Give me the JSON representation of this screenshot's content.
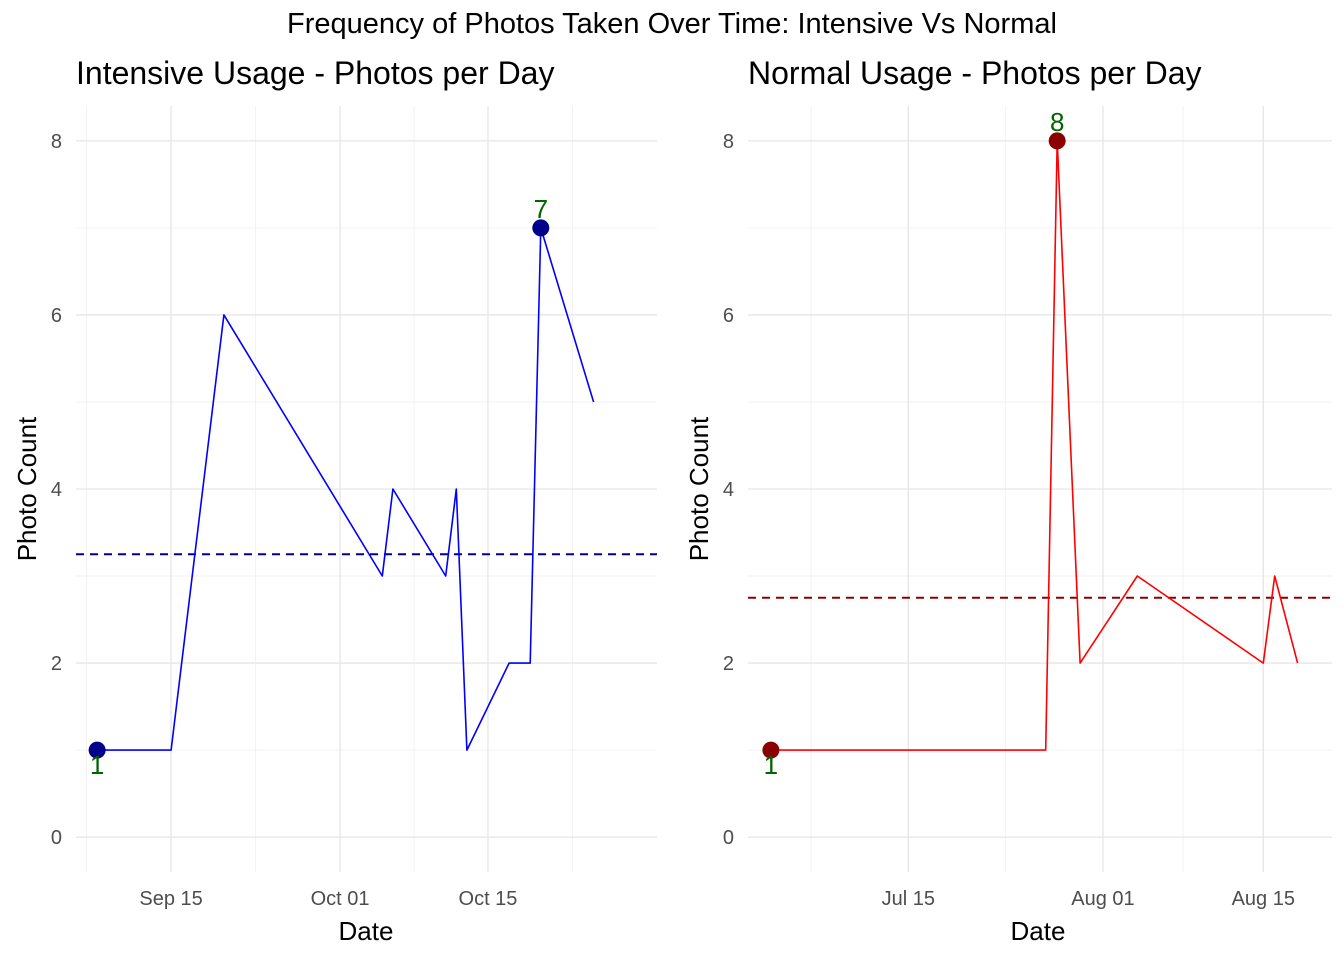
{
  "figure_title": "Frequency of Photos Taken Over Time: Intensive Vs Normal",
  "chart_data": [
    {
      "type": "line",
      "title": "Intensive Usage - Photos per Day",
      "xlabel": "Date",
      "ylabel": "Photo Count",
      "xlim": [
        "2024-09-06",
        "2024-10-31"
      ],
      "ylim": [
        0,
        8
      ],
      "x_ticks": [
        "2024-09-15",
        "2024-10-01",
        "2024-10-15"
      ],
      "x_tick_labels": [
        "Sep 15",
        "Oct 01",
        "Oct 15"
      ],
      "y_ticks": [
        0,
        2,
        4,
        6,
        8
      ],
      "y_tick_labels": [
        "0",
        "2",
        "4",
        "6",
        "8"
      ],
      "line_color": "#0000ff",
      "marker_color": "#00008b",
      "mean_line_color": "#00008b",
      "label_color": "#006400",
      "mean": 3.25,
      "x": [
        "2024-09-08",
        "2024-09-15",
        "2024-09-20",
        "2024-10-05",
        "2024-10-06",
        "2024-10-11",
        "2024-10-12",
        "2024-10-13",
        "2024-10-17",
        "2024-10-19",
        "2024-10-20",
        "2024-10-25"
      ],
      "values": [
        1,
        1,
        6,
        3,
        4,
        3,
        4,
        1,
        2,
        2,
        7,
        5
      ],
      "highlights": [
        {
          "x": "2024-09-08",
          "value": 1,
          "label": "1",
          "position": "below"
        },
        {
          "x": "2024-10-20",
          "value": 7,
          "label": "7",
          "position": "above"
        }
      ]
    },
    {
      "type": "line",
      "title": "Normal Usage - Photos per Day",
      "xlabel": "Date",
      "ylabel": "Photo Count",
      "xlim": [
        "2024-07-01",
        "2024-08-21"
      ],
      "ylim": [
        0,
        8
      ],
      "x_ticks": [
        "2024-07-15",
        "2024-08-01",
        "2024-08-15"
      ],
      "x_tick_labels": [
        "Jul 15",
        "Aug 01",
        "Aug 15"
      ],
      "y_ticks": [
        0,
        2,
        4,
        6,
        8
      ],
      "y_tick_labels": [
        "0",
        "2",
        "4",
        "6",
        "8"
      ],
      "line_color": "#ff0000",
      "marker_color": "#8b0000",
      "mean_line_color": "#8b0000",
      "label_color": "#006400",
      "mean": 2.75,
      "x": [
        "2024-07-03",
        "2024-07-27",
        "2024-07-28",
        "2024-07-30",
        "2024-08-04",
        "2024-08-15",
        "2024-08-16",
        "2024-08-18"
      ],
      "values": [
        1,
        1,
        8,
        2,
        3,
        2,
        3,
        2
      ],
      "highlights": [
        {
          "x": "2024-07-03",
          "value": 1,
          "label": "1",
          "position": "below"
        },
        {
          "x": "2024-07-28",
          "value": 8,
          "label": "8",
          "position": "above"
        }
      ]
    }
  ]
}
